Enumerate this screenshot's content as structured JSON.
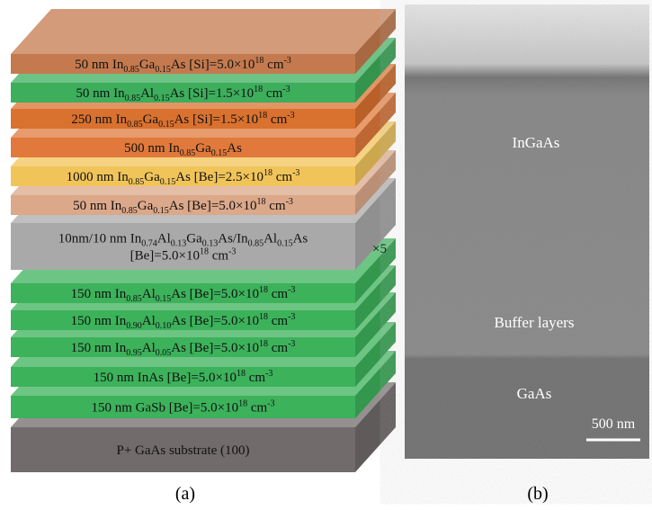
{
  "panel_a": {
    "caption": "(a)",
    "repeat_label": "×5",
    "layers": [
      {
        "color": "#c47a4e",
        "lines": [
          [
            "50 nm In",
            {
              "sub": "0.85"
            },
            "Ga",
            {
              "sub": "0.15"
            },
            "As [Si]=5.0×10",
            {
              "sup": "18"
            },
            " cm",
            {
              "sup": "-3"
            }
          ]
        ]
      },
      {
        "color": "#3dae5c",
        "lines": [
          [
            "50 nm In",
            {
              "sub": "0.85"
            },
            "Al",
            {
              "sub": "0.15"
            },
            "As [Si]=1.5×10",
            {
              "sup": "18"
            },
            " cm",
            {
              "sup": "-3"
            }
          ]
        ]
      },
      {
        "color": "#d9712f",
        "lines": [
          [
            "250 nm In",
            {
              "sub": "0.85"
            },
            "Ga",
            {
              "sub": "0.15"
            },
            "As [Si]=1.5×10",
            {
              "sup": "18"
            },
            " cm",
            {
              "sup": "-3"
            }
          ]
        ]
      },
      {
        "color": "#e0793b",
        "lines": [
          [
            "500 nm In",
            {
              "sub": "0.85"
            },
            "Ga",
            {
              "sub": "0.15"
            },
            "As"
          ]
        ]
      },
      {
        "color": "#f1c45a",
        "lines": [
          [
            "1000 nm In",
            {
              "sub": "0.85"
            },
            "Ga",
            {
              "sub": "0.15"
            },
            "As [Be]=2.5×10",
            {
              "sup": "18"
            },
            " cm",
            {
              "sup": "-3"
            }
          ]
        ]
      },
      {
        "color": "#dba88a",
        "lines": [
          [
            "50 nm In",
            {
              "sub": "0.85"
            },
            "Ga",
            {
              "sub": "0.15"
            },
            "As [Be]=5.0×10",
            {
              "sup": "18"
            },
            " cm",
            {
              "sup": "-3"
            }
          ]
        ]
      },
      {
        "color": "#aaa9a9",
        "lines": [
          [
            "10nm/10 nm In",
            {
              "sub": "0.74"
            },
            "Al",
            {
              "sub": "0.13"
            },
            "Ga",
            {
              "sub": "0.13"
            },
            "As/In",
            {
              "sub": "0.85"
            },
            "Al",
            {
              "sub": "0.15"
            },
            "As"
          ],
          [
            "[Be]=5.0×10",
            {
              "sup": "18"
            },
            " cm",
            {
              "sup": "-3"
            }
          ]
        ]
      },
      {
        "color": "#3cb25b",
        "lines": [
          [
            "150 nm In",
            {
              "sub": "0.85"
            },
            "Al",
            {
              "sub": "0.15"
            },
            "As [Be]=5.0×10",
            {
              "sup": "18"
            },
            " cm",
            {
              "sup": "-3"
            }
          ]
        ]
      },
      {
        "color": "#3cb25b",
        "lines": [
          [
            "150 nm In",
            {
              "sub": "0.90"
            },
            "Al",
            {
              "sub": "0.10"
            },
            "As [Be]=5.0×10",
            {
              "sup": "18"
            },
            " cm",
            {
              "sup": "-3"
            }
          ]
        ]
      },
      {
        "color": "#3cb25b",
        "lines": [
          [
            "150 nm In",
            {
              "sub": "0.95"
            },
            "Al",
            {
              "sub": "0.05"
            },
            "As [Be]=5.0×10",
            {
              "sup": "18"
            },
            " cm",
            {
              "sup": "-3"
            }
          ]
        ]
      },
      {
        "color": "#3cb25b",
        "lines": [
          [
            "150 nm InAs [Be]=5.0×10",
            {
              "sup": "18"
            },
            " cm",
            {
              "sup": "-3"
            }
          ]
        ]
      },
      {
        "color": "#3cb25b",
        "lines": [
          [
            "150 nm GaSb [Be]=5.0×10",
            {
              "sup": "18"
            },
            " cm",
            {
              "sup": "-3"
            }
          ]
        ]
      },
      {
        "color": "#716b6b",
        "lines": [
          [
            "P+ GaAs substrate (100)"
          ]
        ]
      }
    ]
  },
  "panel_b": {
    "caption": "(b)",
    "labels": [
      "InGaAs",
      "Buffer layers",
      "GaAs"
    ],
    "scale_bar": "500 nm"
  }
}
